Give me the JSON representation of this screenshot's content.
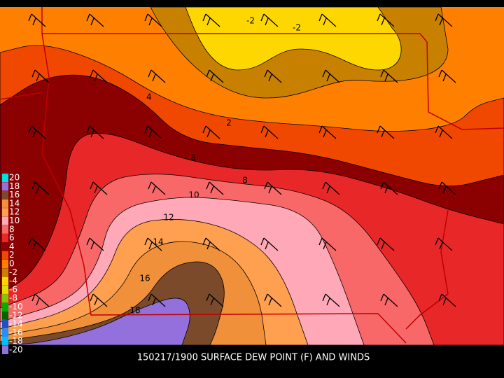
{
  "caption": "150217/1900 SURFACE DEW POINT (F) AND WINDS",
  "contour_labels": [
    "-2",
    "-2",
    "4",
    "2",
    "6",
    "8",
    "10",
    "12",
    "14",
    "16",
    "18"
  ],
  "legend": [
    {
      "label": "20",
      "color": "#00e0e0"
    },
    {
      "label": "18",
      "color": "#9370db"
    },
    {
      "label": "16",
      "color": "#7b4a2a"
    },
    {
      "label": "14",
      "color": "#f0903a"
    },
    {
      "label": "12",
      "color": "#ffa050"
    },
    {
      "label": "10",
      "color": "#ffa8b8"
    },
    {
      "label": "8",
      "color": "#f86868"
    },
    {
      "label": "6",
      "color": "#e82828"
    },
    {
      "label": "4",
      "color": "#8b0000"
    },
    {
      "label": "2",
      "color": "#f04800"
    },
    {
      "label": "0",
      "color": "#ff8000"
    },
    {
      "label": "-2",
      "color": "#c88000"
    },
    {
      "label": "-4",
      "color": "#ffd700"
    },
    {
      "label": "-6",
      "color": "#e0e000"
    },
    {
      "label": "-8",
      "color": "#80c800"
    },
    {
      "label": "-10",
      "color": "#00b000"
    },
    {
      "label": "-12",
      "color": "#006400"
    },
    {
      "label": "-14",
      "color": "#1e50c8"
    },
    {
      "label": "-16",
      "color": "#1e90ff"
    },
    {
      "label": "-18",
      "color": "#00bfff"
    },
    {
      "label": "-20",
      "color": "#9370db"
    }
  ]
}
